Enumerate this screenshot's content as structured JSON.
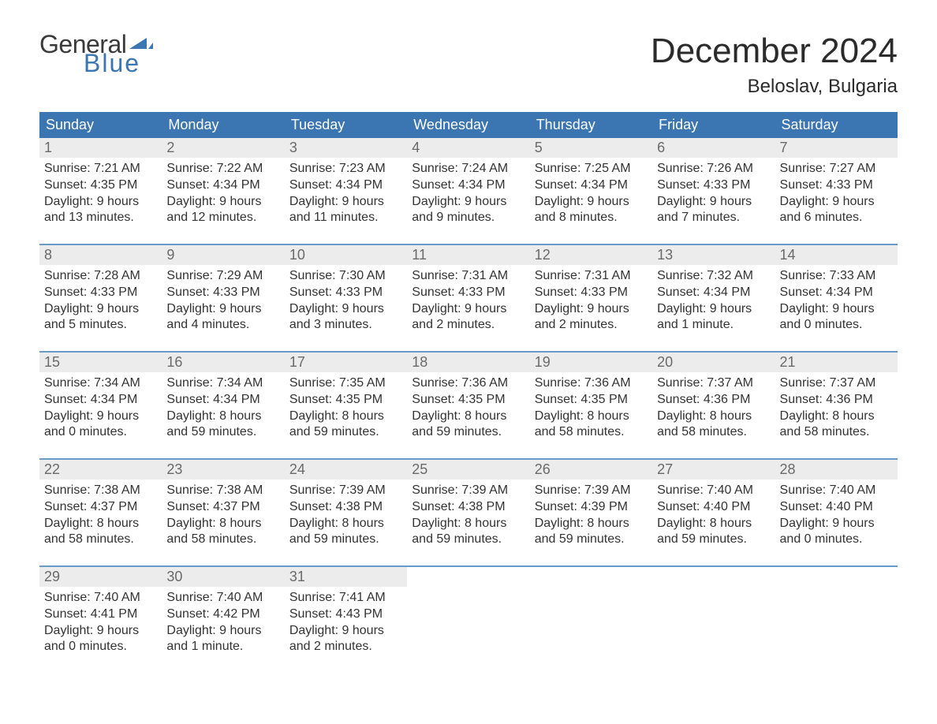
{
  "logo": {
    "general": "General",
    "blue": "Blue",
    "flag_color": "#3b76b3"
  },
  "title": "December 2024",
  "location": "Beloslav, Bulgaria",
  "colors": {
    "header_bg": "#3b76b3",
    "header_text": "#ffffff",
    "daynum_bg": "#ececec",
    "daynum_text": "#6a6a6a",
    "week_border": "#6a99c8",
    "body_text": "#333333"
  },
  "weekdays": [
    "Sunday",
    "Monday",
    "Tuesday",
    "Wednesday",
    "Thursday",
    "Friday",
    "Saturday"
  ],
  "weeks": [
    [
      {
        "n": "1",
        "sr": "7:21 AM",
        "ss": "4:35 PM",
        "dl": "9 hours and 13 minutes."
      },
      {
        "n": "2",
        "sr": "7:22 AM",
        "ss": "4:34 PM",
        "dl": "9 hours and 12 minutes."
      },
      {
        "n": "3",
        "sr": "7:23 AM",
        "ss": "4:34 PM",
        "dl": "9 hours and 11 minutes."
      },
      {
        "n": "4",
        "sr": "7:24 AM",
        "ss": "4:34 PM",
        "dl": "9 hours and 9 minutes."
      },
      {
        "n": "5",
        "sr": "7:25 AM",
        "ss": "4:34 PM",
        "dl": "9 hours and 8 minutes."
      },
      {
        "n": "6",
        "sr": "7:26 AM",
        "ss": "4:33 PM",
        "dl": "9 hours and 7 minutes."
      },
      {
        "n": "7",
        "sr": "7:27 AM",
        "ss": "4:33 PM",
        "dl": "9 hours and 6 minutes."
      }
    ],
    [
      {
        "n": "8",
        "sr": "7:28 AM",
        "ss": "4:33 PM",
        "dl": "9 hours and 5 minutes."
      },
      {
        "n": "9",
        "sr": "7:29 AM",
        "ss": "4:33 PM",
        "dl": "9 hours and 4 minutes."
      },
      {
        "n": "10",
        "sr": "7:30 AM",
        "ss": "4:33 PM",
        "dl": "9 hours and 3 minutes."
      },
      {
        "n": "11",
        "sr": "7:31 AM",
        "ss": "4:33 PM",
        "dl": "9 hours and 2 minutes."
      },
      {
        "n": "12",
        "sr": "7:31 AM",
        "ss": "4:33 PM",
        "dl": "9 hours and 2 minutes."
      },
      {
        "n": "13",
        "sr": "7:32 AM",
        "ss": "4:34 PM",
        "dl": "9 hours and 1 minute."
      },
      {
        "n": "14",
        "sr": "7:33 AM",
        "ss": "4:34 PM",
        "dl": "9 hours and 0 minutes."
      }
    ],
    [
      {
        "n": "15",
        "sr": "7:34 AM",
        "ss": "4:34 PM",
        "dl": "9 hours and 0 minutes."
      },
      {
        "n": "16",
        "sr": "7:34 AM",
        "ss": "4:34 PM",
        "dl": "8 hours and 59 minutes."
      },
      {
        "n": "17",
        "sr": "7:35 AM",
        "ss": "4:35 PM",
        "dl": "8 hours and 59 minutes."
      },
      {
        "n": "18",
        "sr": "7:36 AM",
        "ss": "4:35 PM",
        "dl": "8 hours and 59 minutes."
      },
      {
        "n": "19",
        "sr": "7:36 AM",
        "ss": "4:35 PM",
        "dl": "8 hours and 58 minutes."
      },
      {
        "n": "20",
        "sr": "7:37 AM",
        "ss": "4:36 PM",
        "dl": "8 hours and 58 minutes."
      },
      {
        "n": "21",
        "sr": "7:37 AM",
        "ss": "4:36 PM",
        "dl": "8 hours and 58 minutes."
      }
    ],
    [
      {
        "n": "22",
        "sr": "7:38 AM",
        "ss": "4:37 PM",
        "dl": "8 hours and 58 minutes."
      },
      {
        "n": "23",
        "sr": "7:38 AM",
        "ss": "4:37 PM",
        "dl": "8 hours and 58 minutes."
      },
      {
        "n": "24",
        "sr": "7:39 AM",
        "ss": "4:38 PM",
        "dl": "8 hours and 59 minutes."
      },
      {
        "n": "25",
        "sr": "7:39 AM",
        "ss": "4:38 PM",
        "dl": "8 hours and 59 minutes."
      },
      {
        "n": "26",
        "sr": "7:39 AM",
        "ss": "4:39 PM",
        "dl": "8 hours and 59 minutes."
      },
      {
        "n": "27",
        "sr": "7:40 AM",
        "ss": "4:40 PM",
        "dl": "8 hours and 59 minutes."
      },
      {
        "n": "28",
        "sr": "7:40 AM",
        "ss": "4:40 PM",
        "dl": "9 hours and 0 minutes."
      }
    ],
    [
      {
        "n": "29",
        "sr": "7:40 AM",
        "ss": "4:41 PM",
        "dl": "9 hours and 0 minutes."
      },
      {
        "n": "30",
        "sr": "7:40 AM",
        "ss": "4:42 PM",
        "dl": "9 hours and 1 minute."
      },
      {
        "n": "31",
        "sr": "7:41 AM",
        "ss": "4:43 PM",
        "dl": "9 hours and 2 minutes."
      },
      null,
      null,
      null,
      null
    ]
  ],
  "labels": {
    "sunrise": "Sunrise: ",
    "sunset": "Sunset: ",
    "daylight": "Daylight: "
  }
}
